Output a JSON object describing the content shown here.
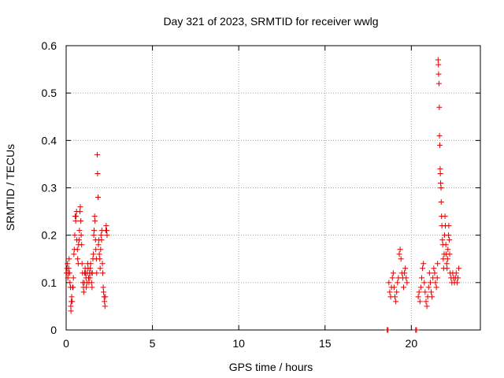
{
  "chart_data": {
    "type": "scatter",
    "title": "Day 321 of 2023, SRMTID for receiver wwlg",
    "xlabel": "GPS time / hours",
    "ylabel": "SRMTID / TECUs",
    "xlim": [
      0,
      24
    ],
    "ylim": [
      0,
      0.6
    ],
    "x_ticks": [
      "0",
      "5",
      "10",
      "15",
      "20"
    ],
    "x_tick_values": [
      0,
      5,
      10,
      15,
      20
    ],
    "y_ticks": [
      "0",
      "0.1",
      "0.2",
      "0.3",
      "0.4",
      "0.5",
      "0.6"
    ],
    "y_tick_values": [
      0,
      0.1,
      0.2,
      0.3,
      0.4,
      0.5,
      0.6
    ],
    "grid": true,
    "marker": "plus",
    "color": "#e00000",
    "series": [
      {
        "name": "SRMTID",
        "points": [
          [
            0.02,
            0.12
          ],
          [
            0.05,
            0.13
          ],
          [
            0.08,
            0.14
          ],
          [
            0.1,
            0.11
          ],
          [
            0.12,
            0.12
          ],
          [
            0.15,
            0.13
          ],
          [
            0.17,
            0.15
          ],
          [
            0.2,
            0.12
          ],
          [
            0.22,
            0.1
          ],
          [
            0.25,
            0.09
          ],
          [
            0.27,
            0.05
          ],
          [
            0.28,
            0.04
          ],
          [
            0.3,
            0.06
          ],
          [
            0.32,
            0.07
          ],
          [
            0.35,
            0.06
          ],
          [
            0.37,
            0.09
          ],
          [
            0.4,
            0.09
          ],
          [
            0.42,
            0.11
          ],
          [
            0.45,
            0.16
          ],
          [
            0.47,
            0.17
          ],
          [
            0.5,
            0.2
          ],
          [
            0.52,
            0.24
          ],
          [
            0.55,
            0.23
          ],
          [
            0.57,
            0.24
          ],
          [
            0.6,
            0.25
          ],
          [
            0.62,
            0.19
          ],
          [
            0.65,
            0.17
          ],
          [
            0.67,
            0.15
          ],
          [
            0.7,
            0.14
          ],
          [
            0.72,
            0.18
          ],
          [
            0.75,
            0.19
          ],
          [
            0.77,
            0.21
          ],
          [
            0.8,
            0.25
          ],
          [
            0.82,
            0.26
          ],
          [
            0.85,
            0.23
          ],
          [
            0.87,
            0.2
          ],
          [
            0.9,
            0.18
          ],
          [
            0.92,
            0.14
          ],
          [
            0.95,
            0.12
          ],
          [
            0.97,
            0.1
          ],
          [
            1.0,
            0.09
          ],
          [
            1.02,
            0.08
          ],
          [
            1.05,
            0.1
          ],
          [
            1.07,
            0.12
          ],
          [
            1.1,
            0.13
          ],
          [
            1.12,
            0.12
          ],
          [
            1.15,
            0.11
          ],
          [
            1.17,
            0.09
          ],
          [
            1.2,
            0.1
          ],
          [
            1.22,
            0.12
          ],
          [
            1.25,
            0.14
          ],
          [
            1.27,
            0.13
          ],
          [
            1.3,
            0.11
          ],
          [
            1.32,
            0.1
          ],
          [
            1.35,
            0.12
          ],
          [
            1.37,
            0.11
          ],
          [
            1.4,
            0.13
          ],
          [
            1.42,
            0.14
          ],
          [
            1.45,
            0.12
          ],
          [
            1.47,
            0.1
          ],
          [
            1.5,
            0.09
          ],
          [
            1.52,
            0.12
          ],
          [
            1.55,
            0.15
          ],
          [
            1.57,
            0.16
          ],
          [
            1.6,
            0.2
          ],
          [
            1.62,
            0.21
          ],
          [
            1.65,
            0.24
          ],
          [
            1.67,
            0.23
          ],
          [
            1.7,
            0.19
          ],
          [
            1.72,
            0.17
          ],
          [
            1.75,
            0.15
          ],
          [
            1.77,
            0.12
          ],
          [
            1.8,
            0.37
          ],
          [
            1.82,
            0.33
          ],
          [
            1.85,
            0.28
          ],
          [
            1.87,
            0.18
          ],
          [
            1.9,
            0.19
          ],
          [
            1.92,
            0.16
          ],
          [
            1.95,
            0.15
          ],
          [
            1.97,
            0.13
          ],
          [
            2.0,
            0.17
          ],
          [
            2.02,
            0.2
          ],
          [
            2.05,
            0.19
          ],
          [
            2.07,
            0.21
          ],
          [
            2.1,
            0.14
          ],
          [
            2.12,
            0.12
          ],
          [
            2.15,
            0.09
          ],
          [
            2.17,
            0.08
          ],
          [
            2.2,
            0.07
          ],
          [
            2.22,
            0.06
          ],
          [
            2.25,
            0.05
          ],
          [
            2.27,
            0.07
          ],
          [
            2.3,
            0.21
          ],
          [
            2.32,
            0.22
          ],
          [
            2.35,
            0.21
          ],
          [
            2.37,
            0.2
          ],
          [
            18.6,
            0.0
          ],
          [
            18.65,
            0.0
          ],
          [
            18.7,
            0.1
          ],
          [
            18.75,
            0.08
          ],
          [
            18.8,
            0.07
          ],
          [
            18.85,
            0.09
          ],
          [
            18.9,
            0.11
          ],
          [
            18.95,
            0.12
          ],
          [
            19.0,
            0.09
          ],
          [
            19.05,
            0.07
          ],
          [
            19.1,
            0.06
          ],
          [
            19.15,
            0.08
          ],
          [
            19.2,
            0.1
          ],
          [
            19.25,
            0.11
          ],
          [
            19.3,
            0.16
          ],
          [
            19.35,
            0.17
          ],
          [
            19.4,
            0.15
          ],
          [
            19.45,
            0.12
          ],
          [
            19.5,
            0.11
          ],
          [
            19.55,
            0.09
          ],
          [
            19.6,
            0.12
          ],
          [
            19.65,
            0.13
          ],
          [
            19.7,
            0.11
          ],
          [
            19.75,
            0.1
          ],
          [
            20.25,
            0.0
          ],
          [
            20.3,
            0.0
          ],
          [
            20.4,
            0.07
          ],
          [
            20.45,
            0.08
          ],
          [
            20.5,
            0.06
          ],
          [
            20.55,
            0.09
          ],
          [
            20.6,
            0.11
          ],
          [
            20.65,
            0.13
          ],
          [
            20.7,
            0.14
          ],
          [
            20.75,
            0.1
          ],
          [
            20.8,
            0.08
          ],
          [
            20.85,
            0.06
          ],
          [
            20.9,
            0.05
          ],
          [
            20.95,
            0.07
          ],
          [
            21.0,
            0.09
          ],
          [
            21.05,
            0.12
          ],
          [
            21.1,
            0.1
          ],
          [
            21.15,
            0.08
          ],
          [
            21.2,
            0.07
          ],
          [
            21.25,
            0.11
          ],
          [
            21.3,
            0.13
          ],
          [
            21.35,
            0.12
          ],
          [
            21.4,
            0.1
          ],
          [
            21.45,
            0.09
          ],
          [
            21.5,
            0.11
          ],
          [
            21.52,
            0.14
          ],
          [
            21.55,
            0.57
          ],
          [
            21.57,
            0.56
          ],
          [
            21.58,
            0.54
          ],
          [
            21.6,
            0.52
          ],
          [
            21.62,
            0.47
          ],
          [
            21.63,
            0.41
          ],
          [
            21.65,
            0.39
          ],
          [
            21.67,
            0.34
          ],
          [
            21.68,
            0.33
          ],
          [
            21.7,
            0.31
          ],
          [
            21.72,
            0.3
          ],
          [
            21.73,
            0.27
          ],
          [
            21.75,
            0.24
          ],
          [
            21.77,
            0.22
          ],
          [
            21.8,
            0.19
          ],
          [
            21.82,
            0.18
          ],
          [
            21.85,
            0.15
          ],
          [
            21.87,
            0.13
          ],
          [
            21.9,
            0.16
          ],
          [
            21.92,
            0.2
          ],
          [
            21.95,
            0.24
          ],
          [
            21.97,
            0.22
          ],
          [
            22.0,
            0.18
          ],
          [
            22.02,
            0.16
          ],
          [
            22.05,
            0.14
          ],
          [
            22.07,
            0.13
          ],
          [
            22.1,
            0.15
          ],
          [
            22.12,
            0.17
          ],
          [
            22.15,
            0.2
          ],
          [
            22.17,
            0.22
          ],
          [
            22.2,
            0.19
          ],
          [
            22.22,
            0.16
          ],
          [
            22.25,
            0.12
          ],
          [
            22.3,
            0.11
          ],
          [
            22.35,
            0.1
          ],
          [
            22.4,
            0.12
          ],
          [
            22.45,
            0.11
          ],
          [
            22.5,
            0.1
          ],
          [
            22.55,
            0.11
          ],
          [
            22.6,
            0.12
          ],
          [
            22.65,
            0.1
          ],
          [
            22.7,
            0.11
          ],
          [
            22.75,
            0.13
          ]
        ]
      }
    ]
  }
}
